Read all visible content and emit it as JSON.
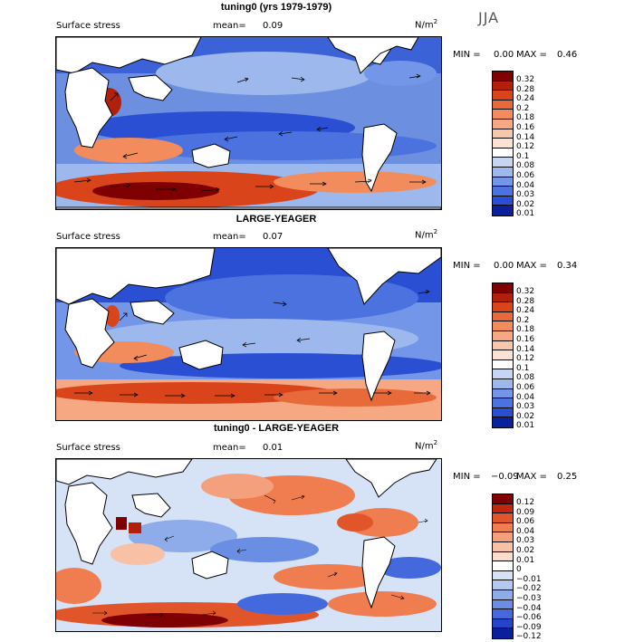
{
  "season": "JJA",
  "panels": [
    {
      "title": "tuning0 (yrs 1979-1979)",
      "variable": "Surface stress",
      "mean_label": "mean=",
      "mean": "0.09",
      "units_base": "N/m",
      "units_exp": "2",
      "min_label": "MIN =",
      "min": "0.00",
      "max_label": "MAX =",
      "max": "0.46",
      "levels": [
        "0.32",
        "0.28",
        "0.24",
        "0.2",
        "0.18",
        "0.16",
        "0.14",
        "0.12",
        "0.1",
        "0.08",
        "0.06",
        "0.04",
        "0.03",
        "0.02",
        "0.01"
      ],
      "colors": [
        "#7f0000",
        "#b2200c",
        "#d9441a",
        "#e8693a",
        "#f28c5c",
        "#f5a882",
        "#f8c6aa",
        "#fbe2d2",
        "#ffffff",
        "#c6d6f2",
        "#9db8ec",
        "#7396e8",
        "#4c72e0",
        "#2a4fd2",
        "#0a1f9c"
      ]
    },
    {
      "title": "LARGE-YEAGER",
      "variable": "Surface stress",
      "mean_label": "mean=",
      "mean": "0.07",
      "units_base": "N/m",
      "units_exp": "2",
      "min_label": "MIN =",
      "min": "0.00",
      "max_label": "MAX =",
      "max": "0.34",
      "levels": [
        "0.32",
        "0.28",
        "0.24",
        "0.2",
        "0.18",
        "0.16",
        "0.14",
        "0.12",
        "0.1",
        "0.08",
        "0.06",
        "0.04",
        "0.03",
        "0.02",
        "0.01"
      ],
      "colors": [
        "#7f0000",
        "#b2200c",
        "#d9441a",
        "#e8693a",
        "#f28c5c",
        "#f5a882",
        "#f8c6aa",
        "#fbe2d2",
        "#ffffff",
        "#c6d6f2",
        "#9db8ec",
        "#7396e8",
        "#4c72e0",
        "#2a4fd2",
        "#0a1f9c"
      ]
    },
    {
      "title": "tuning0 - LARGE-YEAGER",
      "variable": "Surface stress",
      "mean_label": "mean=",
      "mean": "0.01",
      "units_base": "N/m",
      "units_exp": "2",
      "min_label": "MIN =",
      "min": "−0.09",
      "max_label": "MAX =",
      "max": "0.25",
      "levels": [
        "0.12",
        "0.09",
        "0.06",
        "0.04",
        "0.03",
        "0.02",
        "0.01",
        "0",
        "−0.01",
        "−0.02",
        "−0.03",
        "−0.04",
        "−0.06",
        "−0.09",
        "−0.12"
      ],
      "colors": [
        "#7f0000",
        "#c0280e",
        "#e0562a",
        "#ef7d50",
        "#f5a07c",
        "#f8c0a4",
        "#fbddcd",
        "#ffffff",
        "#d6e2f6",
        "#b4c9f0",
        "#8eacea",
        "#6a8ee4",
        "#4469dc",
        "#2445c8",
        "#0a1f9c"
      ]
    }
  ]
}
